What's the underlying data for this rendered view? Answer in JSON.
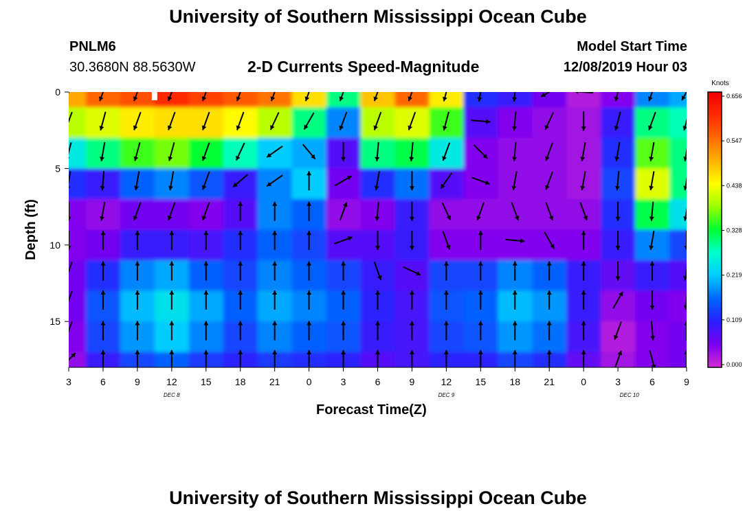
{
  "header": {
    "title": "University of Southern Mississippi Ocean Cube",
    "station_id": "PNLM6",
    "coordinates": "30.3680N 88.5630W",
    "subtitle": "2-D Currents Speed-Magnitude",
    "model_start_label": "Model Start Time",
    "model_start_value": "12/08/2019 Hour 03"
  },
  "footer": {
    "title": "University of Southern Mississippi Ocean Cube"
  },
  "chart_data": {
    "type": "heatmap",
    "title": "2-D Currents Speed-Magnitude",
    "xlabel": "Forecast Time(Z)",
    "ylabel": "Depth (ft)",
    "x_ticks": [
      "3",
      "6",
      "9",
      "12",
      "15",
      "18",
      "21",
      "0",
      "3",
      "6",
      "9",
      "12",
      "15",
      "18",
      "21",
      "0",
      "3",
      "6",
      "9"
    ],
    "x_tick_hours": [
      0,
      3,
      6,
      9,
      12,
      15,
      18,
      21,
      24,
      27,
      30,
      33,
      36,
      39,
      42,
      45,
      48,
      51,
      54
    ],
    "date_labels": [
      {
        "text": "DEC 8",
        "hour": 9
      },
      {
        "text": "DEC 9",
        "hour": 33
      },
      {
        "text": "DEC 10",
        "hour": 49
      }
    ],
    "xlim": [
      0,
      54
    ],
    "y_ticks": [
      "0",
      "5",
      "10",
      "15"
    ],
    "y_tick_values": [
      0,
      5,
      10,
      15
    ],
    "ylim": [
      0,
      18
    ],
    "y_inverted": true,
    "colorbar": {
      "label": "Knots",
      "ticks": [
        "0.656",
        "0.547",
        "0.438",
        "0.328",
        "0.219",
        "0.109",
        "0.000"
      ],
      "range": [
        0,
        0.656
      ],
      "colors": [
        "#d22bd2",
        "#7b00f0",
        "#2a1fff",
        "#0066ff",
        "#00ccff",
        "#00ffcc",
        "#00ff33",
        "#99ff00",
        "#ffff00",
        "#ffb300",
        "#ff6a00",
        "#ff2a00",
        "#f00000"
      ]
    },
    "speed_grid": {
      "hours": [
        0,
        3,
        6,
        9,
        12,
        15,
        18,
        21,
        24,
        27,
        30,
        33,
        36,
        39,
        42,
        45,
        48,
        51,
        54
      ],
      "depths": [
        0,
        2,
        4,
        6,
        8,
        10,
        12,
        14,
        16,
        18
      ],
      "values": [
        [
          0.5,
          0.55,
          0.57,
          0.6,
          0.58,
          0.56,
          0.54,
          0.46,
          0.3,
          0.48,
          0.55,
          0.45,
          0.12,
          0.1,
          0.06,
          0.02,
          0.05,
          0.18,
          0.2
        ],
        [
          0.4,
          0.42,
          0.45,
          0.46,
          0.46,
          0.44,
          0.4,
          0.3,
          0.18,
          0.4,
          0.42,
          0.35,
          0.08,
          0.05,
          0.04,
          0.03,
          0.1,
          0.3,
          0.28
        ],
        [
          0.25,
          0.3,
          0.35,
          0.37,
          0.33,
          0.28,
          0.22,
          0.2,
          0.08,
          0.3,
          0.32,
          0.25,
          0.05,
          0.04,
          0.04,
          0.03,
          0.12,
          0.36,
          0.3
        ],
        [
          0.12,
          0.1,
          0.16,
          0.18,
          0.15,
          0.1,
          0.18,
          0.22,
          0.06,
          0.12,
          0.17,
          0.08,
          0.05,
          0.04,
          0.04,
          0.03,
          0.14,
          0.42,
          0.3
        ],
        [
          0.05,
          0.04,
          0.06,
          0.06,
          0.05,
          0.08,
          0.18,
          0.16,
          0.04,
          0.05,
          0.1,
          0.04,
          0.04,
          0.04,
          0.04,
          0.04,
          0.12,
          0.32,
          0.24
        ],
        [
          0.05,
          0.06,
          0.1,
          0.1,
          0.09,
          0.12,
          0.16,
          0.14,
          0.08,
          0.08,
          0.1,
          0.05,
          0.05,
          0.05,
          0.05,
          0.05,
          0.1,
          0.18,
          0.14
        ],
        [
          0.06,
          0.12,
          0.18,
          0.2,
          0.16,
          0.14,
          0.18,
          0.16,
          0.14,
          0.1,
          0.08,
          0.14,
          0.14,
          0.18,
          0.16,
          0.1,
          0.07,
          0.1,
          0.08
        ],
        [
          0.06,
          0.15,
          0.21,
          0.24,
          0.2,
          0.16,
          0.2,
          0.18,
          0.16,
          0.11,
          0.09,
          0.15,
          0.16,
          0.21,
          0.19,
          0.1,
          0.04,
          0.06,
          0.05
        ],
        [
          0.05,
          0.14,
          0.19,
          0.22,
          0.18,
          0.14,
          0.18,
          0.16,
          0.15,
          0.1,
          0.09,
          0.14,
          0.15,
          0.19,
          0.17,
          0.09,
          0.02,
          0.05,
          0.06
        ],
        [
          0.04,
          0.1,
          0.14,
          0.16,
          0.13,
          0.11,
          0.13,
          0.12,
          0.11,
          0.08,
          0.09,
          0.11,
          0.11,
          0.14,
          0.12,
          0.07,
          0.03,
          0.05,
          0.06
        ]
      ]
    },
    "vectors": {
      "hours": [
        0,
        3,
        6,
        9,
        12,
        15,
        18,
        21,
        24,
        27,
        30,
        33,
        36,
        39,
        42,
        45,
        48,
        51,
        54
      ],
      "depths": [
        0,
        1.9,
        3.9,
        5.8,
        7.8,
        9.7,
        11.7,
        13.6,
        15.6,
        17.5
      ],
      "directions_deg": [
        [
          200,
          200,
          200,
          200,
          200,
          200,
          200,
          200,
          200,
          200,
          200,
          195,
          190,
          185,
          240,
          275,
          195,
          200,
          210
        ],
        [
          200,
          195,
          200,
          200,
          200,
          200,
          205,
          210,
          200,
          200,
          200,
          195,
          95,
          185,
          205,
          180,
          195,
          200,
          195
        ],
        [
          195,
          190,
          195,
          195,
          200,
          205,
          235,
          140,
          180,
          185,
          185,
          200,
          135,
          185,
          200,
          190,
          190,
          190,
          190
        ],
        [
          190,
          185,
          190,
          190,
          200,
          230,
          235,
          0,
          60,
          190,
          180,
          215,
          110,
          190,
          200,
          190,
          185,
          190,
          190
        ],
        [
          180,
          190,
          200,
          200,
          200,
          0,
          0,
          0,
          20,
          185,
          180,
          155,
          200,
          160,
          160,
          160,
          180,
          185,
          190
        ],
        [
          180,
          0,
          0,
          0,
          0,
          0,
          0,
          0,
          70,
          180,
          180,
          160,
          0,
          95,
          150,
          0,
          180,
          190,
          180
        ],
        [
          200,
          0,
          0,
          0,
          0,
          0,
          0,
          0,
          0,
          160,
          115,
          0,
          0,
          0,
          0,
          0,
          180,
          0,
          190
        ],
        [
          200,
          0,
          0,
          0,
          0,
          0,
          0,
          0,
          0,
          0,
          0,
          0,
          0,
          0,
          0,
          0,
          30,
          180,
          185
        ],
        [
          200,
          0,
          0,
          0,
          0,
          0,
          0,
          0,
          0,
          0,
          0,
          0,
          0,
          0,
          0,
          0,
          200,
          175,
          0
        ],
        [
          45,
          0,
          0,
          0,
          0,
          0,
          0,
          0,
          0,
          0,
          0,
          0,
          0,
          0,
          0,
          0,
          20,
          165,
          0
        ]
      ]
    },
    "gap_marker": {
      "hour": 7.5,
      "depth": 0
    }
  }
}
